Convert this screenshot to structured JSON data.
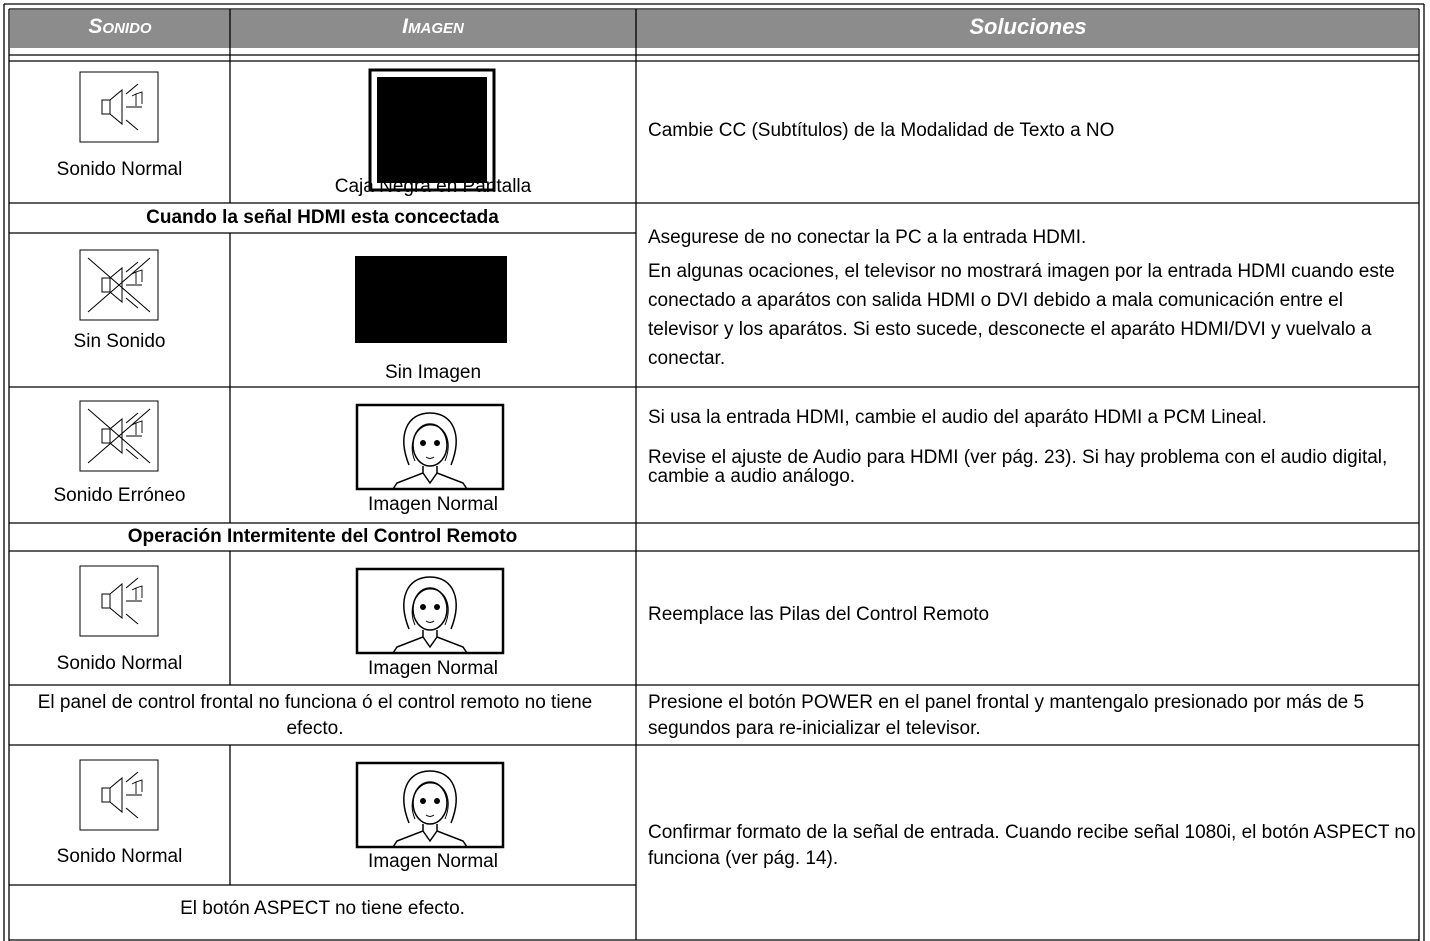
{
  "table": {
    "headers": [
      "Sonido",
      "Imagen",
      "Soluciones"
    ],
    "rows": [
      {
        "sound": "Sonido Normal",
        "picture": "Caja Negra en Pantalla",
        "solution": [
          "Cambie CC (Subtítulos) de la Modalidad de Texto a NO"
        ]
      },
      {
        "condition": "Cuando la señal HDMI esta concectada",
        "solution": [
          "Asegurese de no conectar la PC a la entrada HDMI.",
          "En algunas ocaciones, el televisor no mostrará imagen por la entrada HDMI cuando este conectado a aparátos con salida HDMI o DVI debido a mala comunicación entre el televisor y los aparátos. Si esto sucede, desconecte el aparáto HDMI/DVI y vuelvalo a conectar."
        ]
      },
      {
        "sound": "Sin Sonido",
        "picture": "Sin Imagen"
      },
      {
        "sound": "Sonido Erróneo",
        "picture": "Imagen Normal",
        "solution": [
          "Si usa la entrada HDMI, cambie el audio del aparáto HDMI a PCM Lineal.",
          "Revise el ajuste de Audio para HDMI (ver pág. 23). Si hay problema con el audio digital, cambie a audio análogo."
        ]
      },
      {
        "condition": "Operación Intermitente del Control Remoto"
      },
      {
        "sound": "Sonido Normal",
        "picture": "Imagen Normal",
        "solution": [
          "Reemplace las Pilas del Control Remoto"
        ]
      },
      {
        "condition": "El panel de control frontal no funciona ó el control remoto no tiene efecto.",
        "solution": [
          "Presione el botón POWER en el panel frontal y mantengalo presionado por más de 5 segundos para re-inicializar el televisor."
        ]
      },
      {
        "sound": "Sonido Normal",
        "picture": "Imagen Normal",
        "solution": [
          "Confirmar formato de la señal de entrada. Cuando recibe señal 1080i, el botón ASPECT no funciona (ver pág. 14)."
        ]
      },
      {
        "condition": "El botón ASPECT no tiene efecto."
      }
    ]
  }
}
